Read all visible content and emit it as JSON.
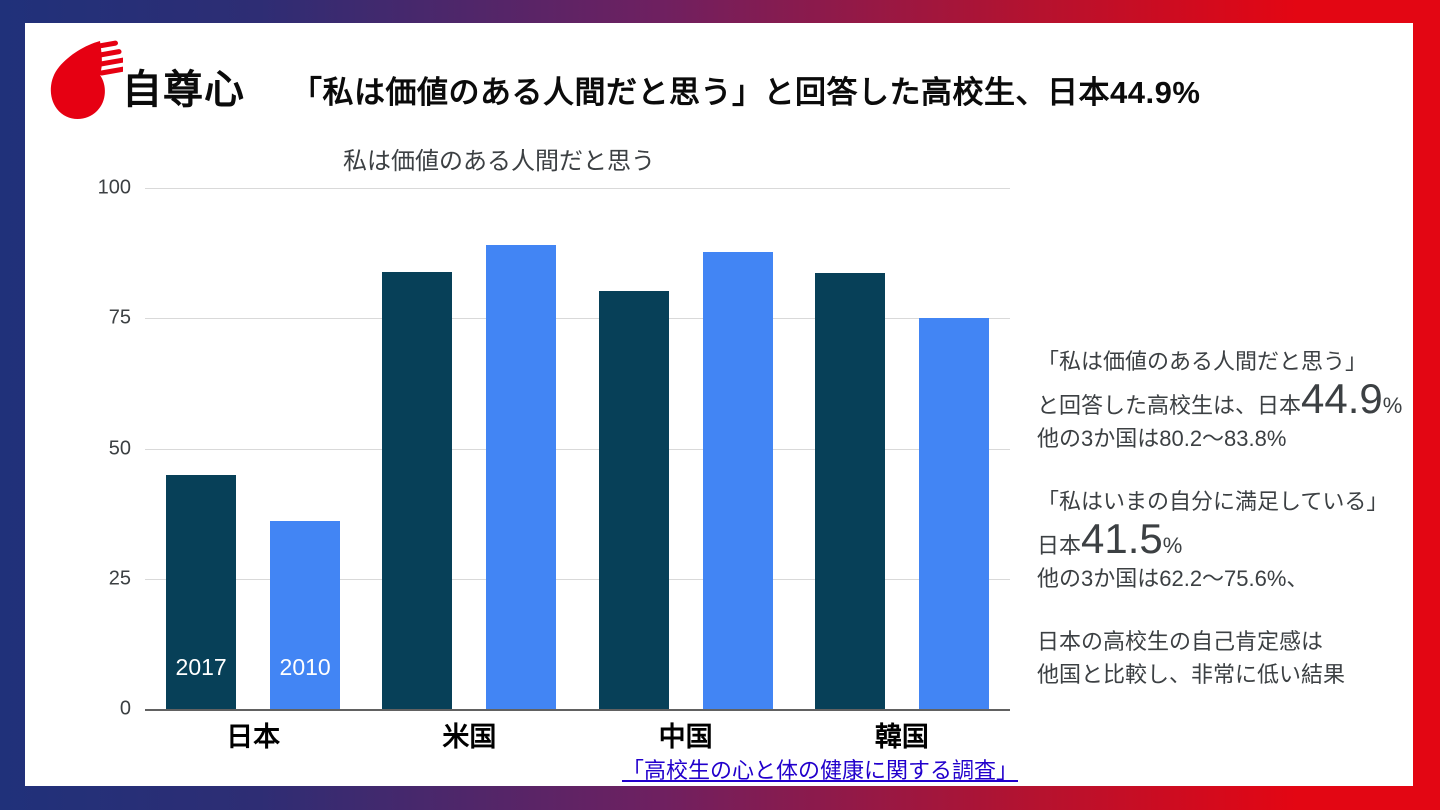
{
  "header": {
    "topic": "自尊心",
    "title": "「私は価値のある人間だと思う」と回答した高校生、日本44.9%",
    "logo_color": "#e60012"
  },
  "chart_data": {
    "type": "bar",
    "title": "私は価値のある人間だと思う",
    "categories": [
      "日本",
      "米国",
      "中国",
      "韓国"
    ],
    "series": [
      {
        "name": "2017",
        "color": "#074058",
        "values": [
          44.9,
          83.8,
          80.2,
          83.7
        ]
      },
      {
        "name": "2010",
        "color": "#4285f4",
        "values": [
          36.1,
          89.1,
          87.7,
          75.1
        ]
      }
    ],
    "ylim": [
      0,
      100
    ],
    "yticks": [
      0,
      25,
      50,
      75,
      100
    ],
    "grid": true,
    "legend": "year labels shown inside first category bars",
    "bar_year_labels_category": "日本"
  },
  "notes": {
    "p1_line1": "「私は価値のある人間だと思う」",
    "p1_pre": "と回答した高校生は、日本",
    "p1_big": "44.9",
    "p1_pct": "%",
    "p1_line3": "他の3か国は80.2〜83.8%",
    "p2_line1": "「私はいまの自分に満足している」",
    "p2_pre": "日本",
    "p2_big": "41.5",
    "p2_pct": "%",
    "p2_line3": "他の3か国は62.2〜75.6%、",
    "p3_line1": "日本の高校生の自己肯定感は",
    "p3_line2": "他国と比較し、非常に低い結果"
  },
  "source": {
    "label": "「高校生の心と体の健康に関する調査」"
  }
}
